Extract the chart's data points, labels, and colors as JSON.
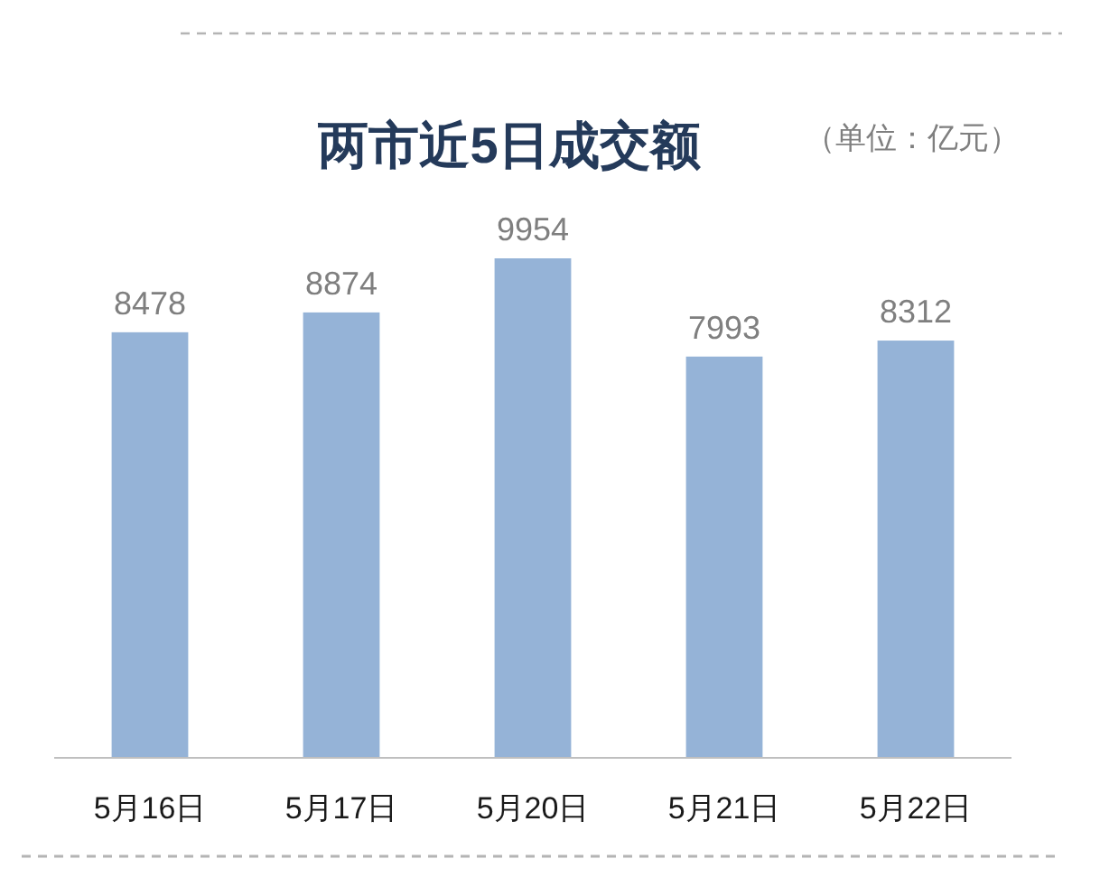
{
  "chart_data": {
    "type": "bar",
    "title": "两市近5日成交额",
    "subtitle": "（单位：亿元）",
    "categories": [
      "5月16日",
      "5月17日",
      "5月20日",
      "5月21日",
      "5月22日"
    ],
    "values": [
      8478,
      8874,
      9954,
      7993,
      8312
    ],
    "color": "#95b3d7",
    "tick_labels": "x",
    "data_labels": true
  }
}
